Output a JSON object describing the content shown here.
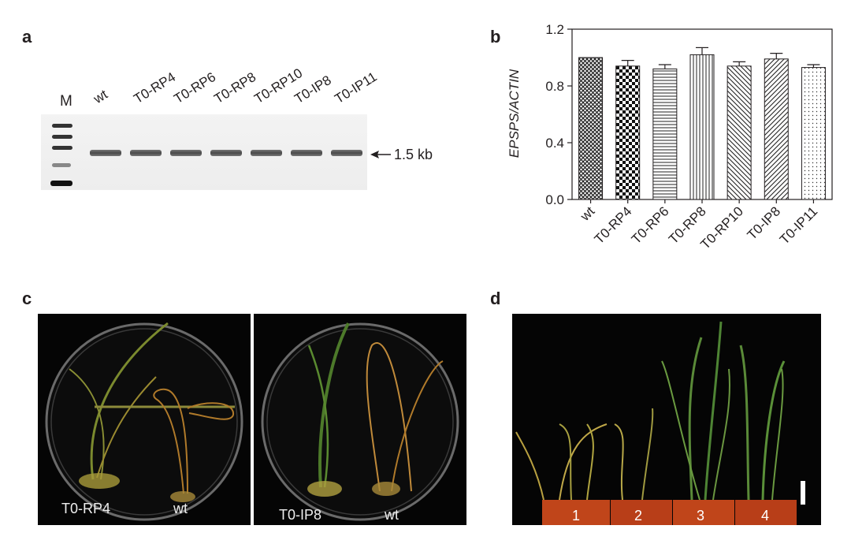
{
  "panels": {
    "a": {
      "label": "a",
      "marker": "M",
      "lanes": [
        "wt",
        "T0-RP4",
        "T0-RP6",
        "T0-RP8",
        "T0-RP10",
        "T0-IP8",
        "T0-IP11"
      ],
      "band_size": "1.5 kb"
    },
    "b": {
      "label": "b"
    },
    "c": {
      "label": "c",
      "left_plate": {
        "label_left": "T0-RP4",
        "label_right": "wt"
      },
      "right_plate": {
        "label_left": "T0-IP8",
        "label_right": "wt"
      }
    },
    "d": {
      "label": "d",
      "pots": [
        "1",
        "2",
        "3",
        "4"
      ]
    }
  },
  "chart_data": {
    "type": "bar",
    "categories": [
      "wt",
      "T0-RP4",
      "T0-RP6",
      "T0-RP8",
      "T0-RP10",
      "T0-IP8",
      "T0-IP11"
    ],
    "values": [
      1.0,
      0.94,
      0.92,
      1.02,
      0.94,
      0.99,
      0.93
    ],
    "errors": [
      0.0,
      0.04,
      0.03,
      0.05,
      0.03,
      0.04,
      0.02
    ],
    "patterns": [
      "crosshatch",
      "checker",
      "horizontal",
      "vertical",
      "diagonal-left",
      "diagonal-right",
      "dots"
    ],
    "xlabel": "",
    "ylabel": "EPSPS/ACTIN",
    "ylim": [
      0,
      1.2
    ],
    "yticks": [
      "0.0",
      "0.4",
      "0.8",
      "1.2"
    ],
    "grid": false
  }
}
